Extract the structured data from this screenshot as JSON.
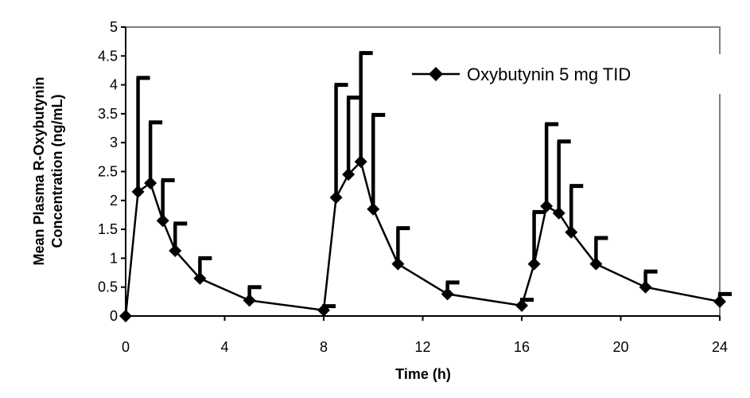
{
  "chart_data": {
    "type": "line",
    "title": "",
    "xlabel": "Time (h)",
    "ylabel_lines": [
      "Mean Plasma R-Oxybutynin",
      "Concentration (ng/mL)"
    ],
    "xlim": [
      0,
      24
    ],
    "ylim": [
      0,
      5
    ],
    "xticks": [
      0,
      4,
      8,
      12,
      16,
      20,
      24
    ],
    "yticks": [
      0,
      0.5,
      1,
      1.5,
      2,
      2.5,
      3,
      3.5,
      4,
      4.5,
      5
    ],
    "ytick_labels": [
      "0",
      "0.5",
      "1",
      "1.5",
      "2",
      "2.5",
      "3",
      "3.5",
      "4",
      "4.5",
      "5"
    ],
    "grid": false,
    "legend_position": "top-right",
    "series": [
      {
        "name": "Oxybutynin 5 mg TID",
        "color": "#000000",
        "marker": "diamond",
        "x": [
          0,
          0.5,
          1,
          1.5,
          2,
          3,
          5,
          8,
          8.5,
          9,
          9.5,
          10,
          11,
          13,
          16,
          16.5,
          17,
          17.5,
          18,
          19,
          21,
          24
        ],
        "y": [
          0,
          2.15,
          2.3,
          1.65,
          1.13,
          0.65,
          0.27,
          0.1,
          2.05,
          2.45,
          2.67,
          1.85,
          0.9,
          0.38,
          0.18,
          0.9,
          1.9,
          1.78,
          1.45,
          0.9,
          0.5,
          0.25
        ],
        "error_upper": [
          0,
          4.12,
          3.35,
          2.35,
          1.6,
          1.0,
          0.5,
          0.17,
          4.0,
          3.78,
          4.55,
          3.48,
          1.52,
          0.58,
          0.28,
          1.8,
          3.32,
          3.02,
          2.25,
          1.35,
          0.77,
          0.38
        ]
      }
    ]
  },
  "colors": {
    "axis": "#000000",
    "frame": "#7f7f7f",
    "series": "#000000",
    "background": "#ffffff"
  }
}
